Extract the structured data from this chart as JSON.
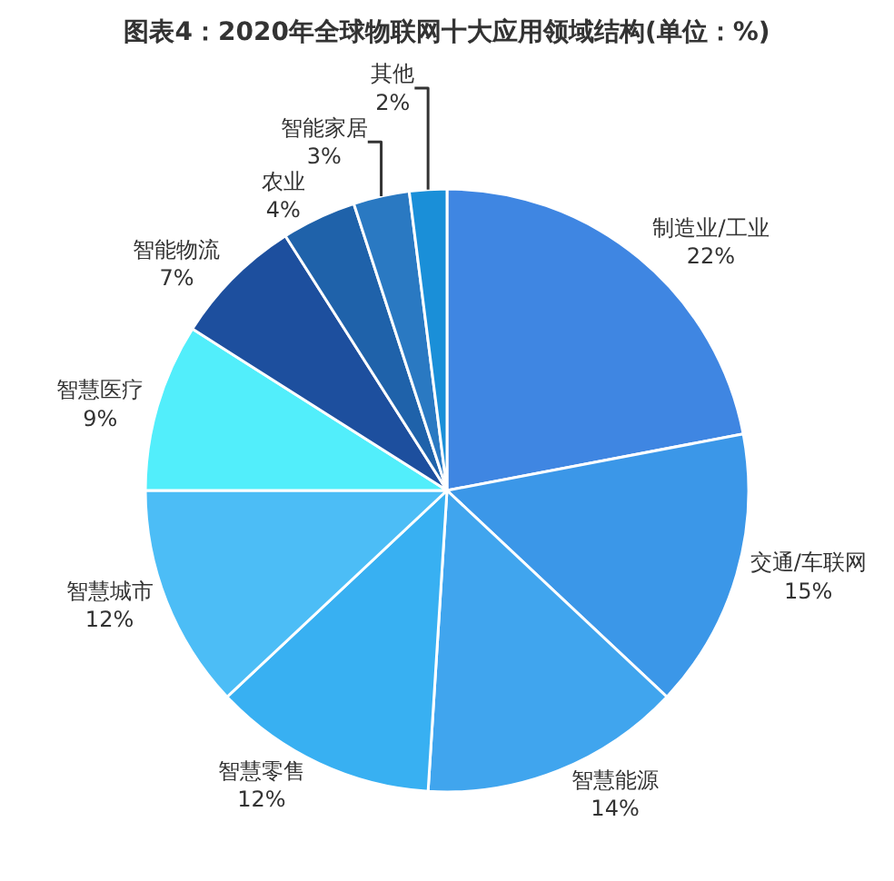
{
  "chart_data": {
    "type": "pie",
    "title": "图表4：2020年全球物联网十大应用领域结构(单位：%)",
    "categories": [
      "制造业/工业",
      "交通/车联网",
      "智慧能源",
      "智慧零售",
      "智慧城市",
      "智慧医疗",
      "智能物流",
      "农业",
      "智能家居",
      "其他"
    ],
    "values": [
      22,
      15,
      14,
      12,
      12,
      9,
      7,
      4,
      3,
      2
    ],
    "value_labels": [
      "22%",
      "15%",
      "14%",
      "12%",
      "12%",
      "9%",
      "7%",
      "4%",
      "3%",
      "2%"
    ],
    "colors": [
      "#3f86e2",
      "#3b97e8",
      "#40a5ee",
      "#38b0f2",
      "#4cbdf6",
      "#52eefb",
      "#1d4f9e",
      "#1f62aa",
      "#2a79c2",
      "#1a8fd8"
    ],
    "legend": false
  }
}
